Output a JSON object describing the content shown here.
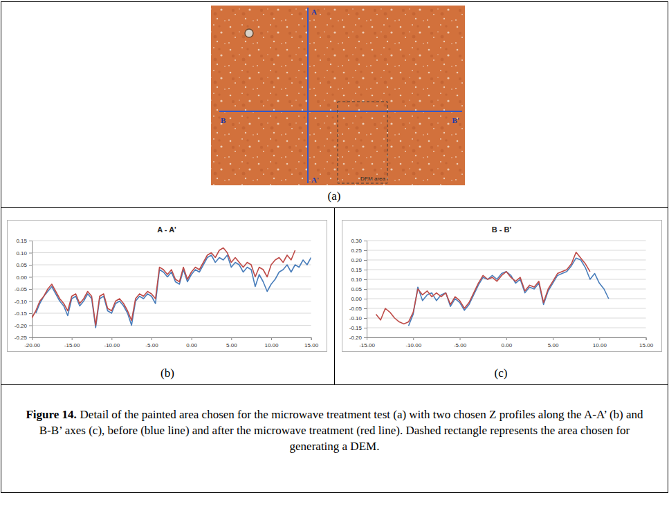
{
  "photo": {
    "labels": [
      "A",
      "A'",
      "B",
      "B'"
    ],
    "area_label": "DEM area"
  },
  "panels": [
    "(a)",
    "(b)",
    "(c)"
  ],
  "chart_data": [
    {
      "type": "line",
      "title": "A - A'",
      "x": [
        -20,
        -19.5,
        -19,
        -18.5,
        -18,
        -17.5,
        -17,
        -16.5,
        -16,
        -15.5,
        -15,
        -14.5,
        -14,
        -13.5,
        -13,
        -12.5,
        -12,
        -11.5,
        -11,
        -10.5,
        -10,
        -9.5,
        -9,
        -8.5,
        -8,
        -7.5,
        -7,
        -6.5,
        -6,
        -5.5,
        -5,
        -4.5,
        -4,
        -3.5,
        -3,
        -2.5,
        -2,
        -1.5,
        -1,
        -0.5,
        0,
        0.5,
        1,
        1.5,
        2,
        2.5,
        3,
        3.5,
        4,
        4.5,
        5,
        5.5,
        6,
        6.5,
        7,
        7.5,
        8,
        8.5,
        9,
        9.5,
        10,
        10.5,
        11,
        11.5,
        12,
        12.5,
        13,
        13.5,
        14,
        14.5,
        15
      ],
      "series": [
        {
          "color": "#4a7ebb",
          "values": [
            null,
            -0.15,
            -0.11,
            -0.08,
            -0.06,
            -0.04,
            -0.07,
            -0.1,
            -0.12,
            -0.16,
            -0.09,
            -0.08,
            -0.12,
            -0.1,
            -0.07,
            -0.09,
            -0.21,
            -0.09,
            -0.08,
            -0.14,
            -0.15,
            -0.11,
            -0.1,
            -0.12,
            -0.15,
            -0.2,
            -0.1,
            -0.08,
            -0.09,
            -0.07,
            -0.08,
            -0.11,
            0.03,
            0.02,
            0.0,
            0.02,
            -0.02,
            -0.03,
            0.03,
            -0.02,
            0.01,
            0.03,
            0.02,
            0.05,
            0.08,
            0.09,
            0.06,
            0.08,
            0.07,
            0.09,
            0.04,
            0.06,
            0.05,
            0.02,
            0.04,
            0.03,
            -0.04,
            0.01,
            -0.02,
            -0.06,
            -0.03,
            -0.01,
            0.02,
            0.03,
            0.05,
            0.02,
            0.05,
            0.04,
            0.07,
            0.05,
            0.08
          ]
        },
        {
          "color": "#be4b48",
          "values": [
            -0.17,
            -0.14,
            -0.1,
            -0.08,
            -0.05,
            -0.03,
            -0.06,
            -0.09,
            -0.11,
            -0.14,
            -0.08,
            -0.07,
            -0.11,
            -0.09,
            -0.06,
            -0.08,
            -0.2,
            -0.08,
            -0.07,
            -0.13,
            -0.14,
            -0.1,
            -0.09,
            -0.11,
            -0.14,
            -0.18,
            -0.09,
            -0.07,
            -0.08,
            -0.06,
            -0.07,
            -0.09,
            0.04,
            0.03,
            0.01,
            0.03,
            -0.01,
            -0.02,
            0.04,
            -0.01,
            0.02,
            0.04,
            0.03,
            0.06,
            0.09,
            0.1,
            0.08,
            0.11,
            0.12,
            0.1,
            0.06,
            0.08,
            0.06,
            0.04,
            0.06,
            0.05,
            0.0,
            0.04,
            0.03,
            0.0,
            0.05,
            0.07,
            0.08,
            0.06,
            0.09,
            0.07,
            0.11,
            null,
            null,
            null,
            null
          ]
        }
      ],
      "xlim": [
        -20,
        15
      ],
      "xticks": [
        {
          "value": -20,
          "label": "-20.00"
        },
        {
          "value": -15,
          "label": "-15.00"
        },
        {
          "value": -10,
          "label": "-10.00"
        },
        {
          "value": -5,
          "label": "-5.00"
        },
        {
          "value": 0,
          "label": "0.00"
        },
        {
          "value": 5,
          "label": "5.00"
        },
        {
          "value": 10,
          "label": "10.00"
        },
        {
          "value": 15,
          "label": "15.00"
        }
      ],
      "ylim": [
        -0.25,
        0.15
      ],
      "yticks": [
        {
          "value": 0.15,
          "label": "0.15"
        },
        {
          "value": 0.1,
          "label": "0.10"
        },
        {
          "value": 0.05,
          "label": "0.05"
        },
        {
          "value": 0,
          "label": "0.00"
        },
        {
          "value": -0.05,
          "label": "-0.05"
        },
        {
          "value": -0.1,
          "label": "-0.10"
        },
        {
          "value": -0.15,
          "label": "-0.15"
        },
        {
          "value": -0.2,
          "label": "-0.20"
        },
        {
          "value": -0.25,
          "label": "-0.25"
        }
      ],
      "grid": true
    },
    {
      "type": "line",
      "title": "B - B'",
      "x": [
        -14,
        -13.5,
        -13,
        -12.5,
        -12,
        -11.5,
        -11,
        -10.5,
        -10,
        -9.5,
        -9,
        -8.5,
        -8,
        -7.5,
        -7,
        -6.5,
        -6,
        -5.5,
        -5,
        -4.5,
        -4,
        -3.5,
        -3,
        -2.5,
        -2,
        -1.5,
        -1,
        -0.5,
        0,
        0.5,
        1,
        1.5,
        2,
        2.5,
        3,
        3.5,
        4,
        4.5,
        5,
        5.5,
        6,
        6.5,
        7,
        7.5,
        8,
        8.5,
        9,
        9.5,
        10,
        10.5,
        11
      ],
      "series": [
        {
          "color": "#4a7ebb",
          "values": [
            null,
            null,
            null,
            null,
            null,
            null,
            null,
            -0.14,
            -0.08,
            0.06,
            -0.01,
            0.02,
            0.03,
            -0.01,
            0.02,
            0.03,
            -0.04,
            0.0,
            -0.02,
            -0.06,
            -0.03,
            0.02,
            0.07,
            0.11,
            0.1,
            0.12,
            0.1,
            0.13,
            0.14,
            0.12,
            0.08,
            0.1,
            0.03,
            0.06,
            0.05,
            0.08,
            -0.03,
            0.04,
            0.08,
            0.12,
            0.13,
            0.14,
            0.17,
            0.21,
            0.2,
            0.16,
            0.1,
            0.13,
            0.08,
            0.05,
            0.0
          ]
        },
        {
          "color": "#be4b48",
          "values": [
            -0.08,
            -0.11,
            -0.05,
            -0.07,
            -0.1,
            -0.12,
            -0.13,
            -0.12,
            -0.07,
            0.05,
            0.02,
            0.04,
            0.01,
            0.03,
            0.01,
            0.03,
            -0.03,
            0.01,
            -0.01,
            -0.05,
            -0.02,
            0.03,
            0.08,
            0.12,
            0.1,
            0.11,
            0.09,
            0.12,
            0.14,
            0.11,
            0.09,
            0.11,
            0.04,
            0.07,
            0.06,
            0.09,
            -0.02,
            0.05,
            0.09,
            0.13,
            0.14,
            0.15,
            0.18,
            0.24,
            0.21,
            0.18,
            0.14,
            null,
            null,
            null,
            null
          ]
        }
      ],
      "xlim": [
        -15,
        15
      ],
      "xticks": [
        {
          "value": -15,
          "label": "-15.00"
        },
        {
          "value": -10,
          "label": "-10.00"
        },
        {
          "value": -5,
          "label": "-5.00"
        },
        {
          "value": 0,
          "label": "0.00"
        },
        {
          "value": 5,
          "label": "5.00"
        },
        {
          "value": 10,
          "label": "10.00"
        },
        {
          "value": 15,
          "label": "15.00"
        }
      ],
      "ylim": [
        -0.2,
        0.3
      ],
      "yticks": [
        {
          "value": 0.3,
          "label": "0.30"
        },
        {
          "value": 0.25,
          "label": "0.25"
        },
        {
          "value": 0.2,
          "label": "0.20"
        },
        {
          "value": 0.15,
          "label": "0.15"
        },
        {
          "value": 0.1,
          "label": "0.10"
        },
        {
          "value": 0.05,
          "label": "0.05"
        },
        {
          "value": 0,
          "label": "0.00"
        },
        {
          "value": -0.05,
          "label": "-0.05"
        },
        {
          "value": -0.1,
          "label": "-0.10"
        },
        {
          "value": -0.15,
          "label": "-0.15"
        },
        {
          "value": -0.2,
          "label": "-0.20"
        }
      ],
      "grid": true
    }
  ],
  "caption": {
    "label": "Figure 14.",
    "text": "Detail of the painted area chosen for the microwave treatment test (a) with two chosen Z profiles along the A-A’ (b) and B-B’ axes (c), before (blue line) and after the microwave treatment (red line). Dashed rectangle represents the area chosen for generating a DEM."
  }
}
